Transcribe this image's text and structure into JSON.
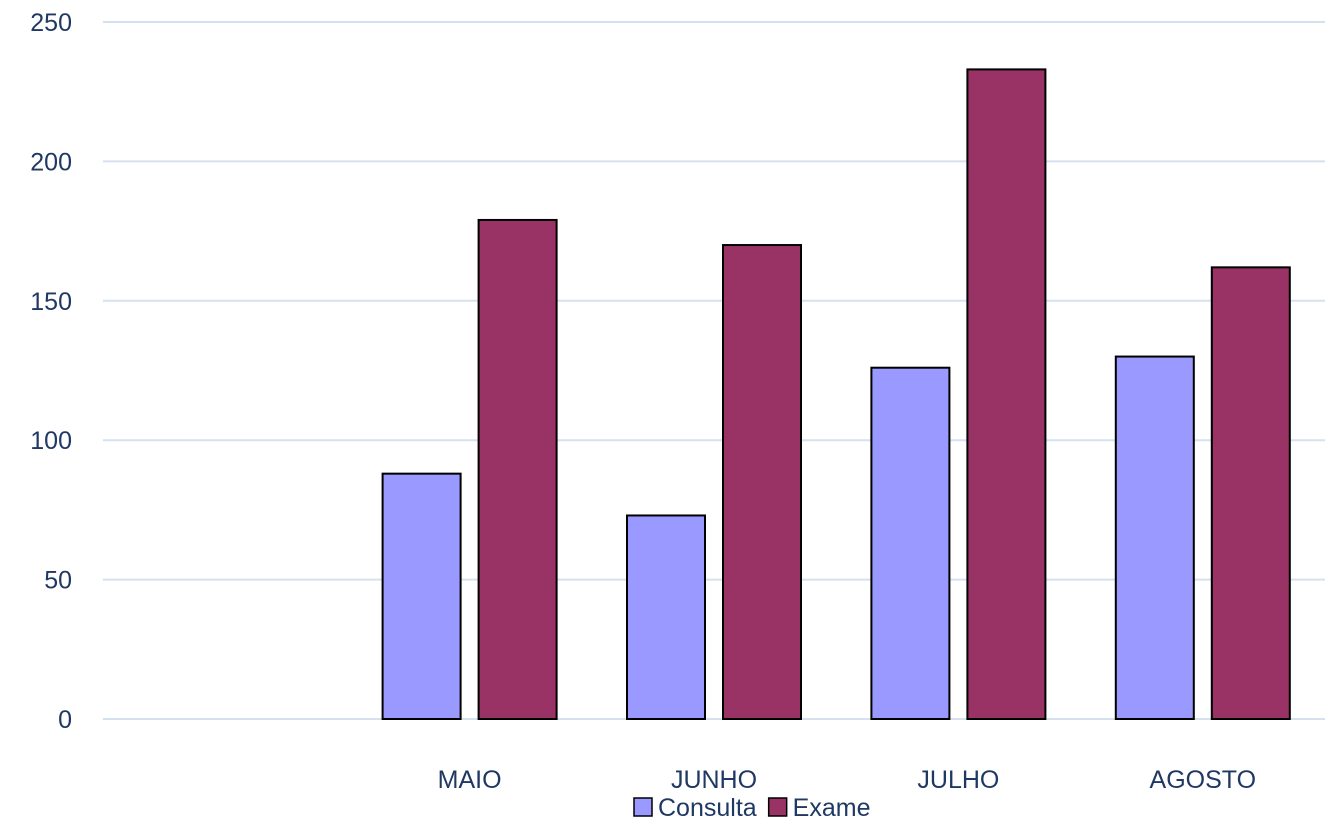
{
  "chart_data": {
    "type": "bar",
    "categories": [
      "",
      "MAIO",
      "JUNHO",
      "JULHO",
      "AGOSTO"
    ],
    "series": [
      {
        "name": "Consulta",
        "values": [
          null,
          88,
          73,
          126,
          130
        ],
        "color": "#9999ff"
      },
      {
        "name": "Exame",
        "values": [
          null,
          179,
          170,
          233,
          162
        ],
        "color": "#993366"
      }
    ],
    "title": "",
    "xlabel": "",
    "ylabel": "",
    "ylim": [
      0,
      250
    ],
    "yticks": [
      0,
      50,
      100,
      150,
      200,
      250
    ],
    "grid": true,
    "legend": "bottom-center"
  }
}
